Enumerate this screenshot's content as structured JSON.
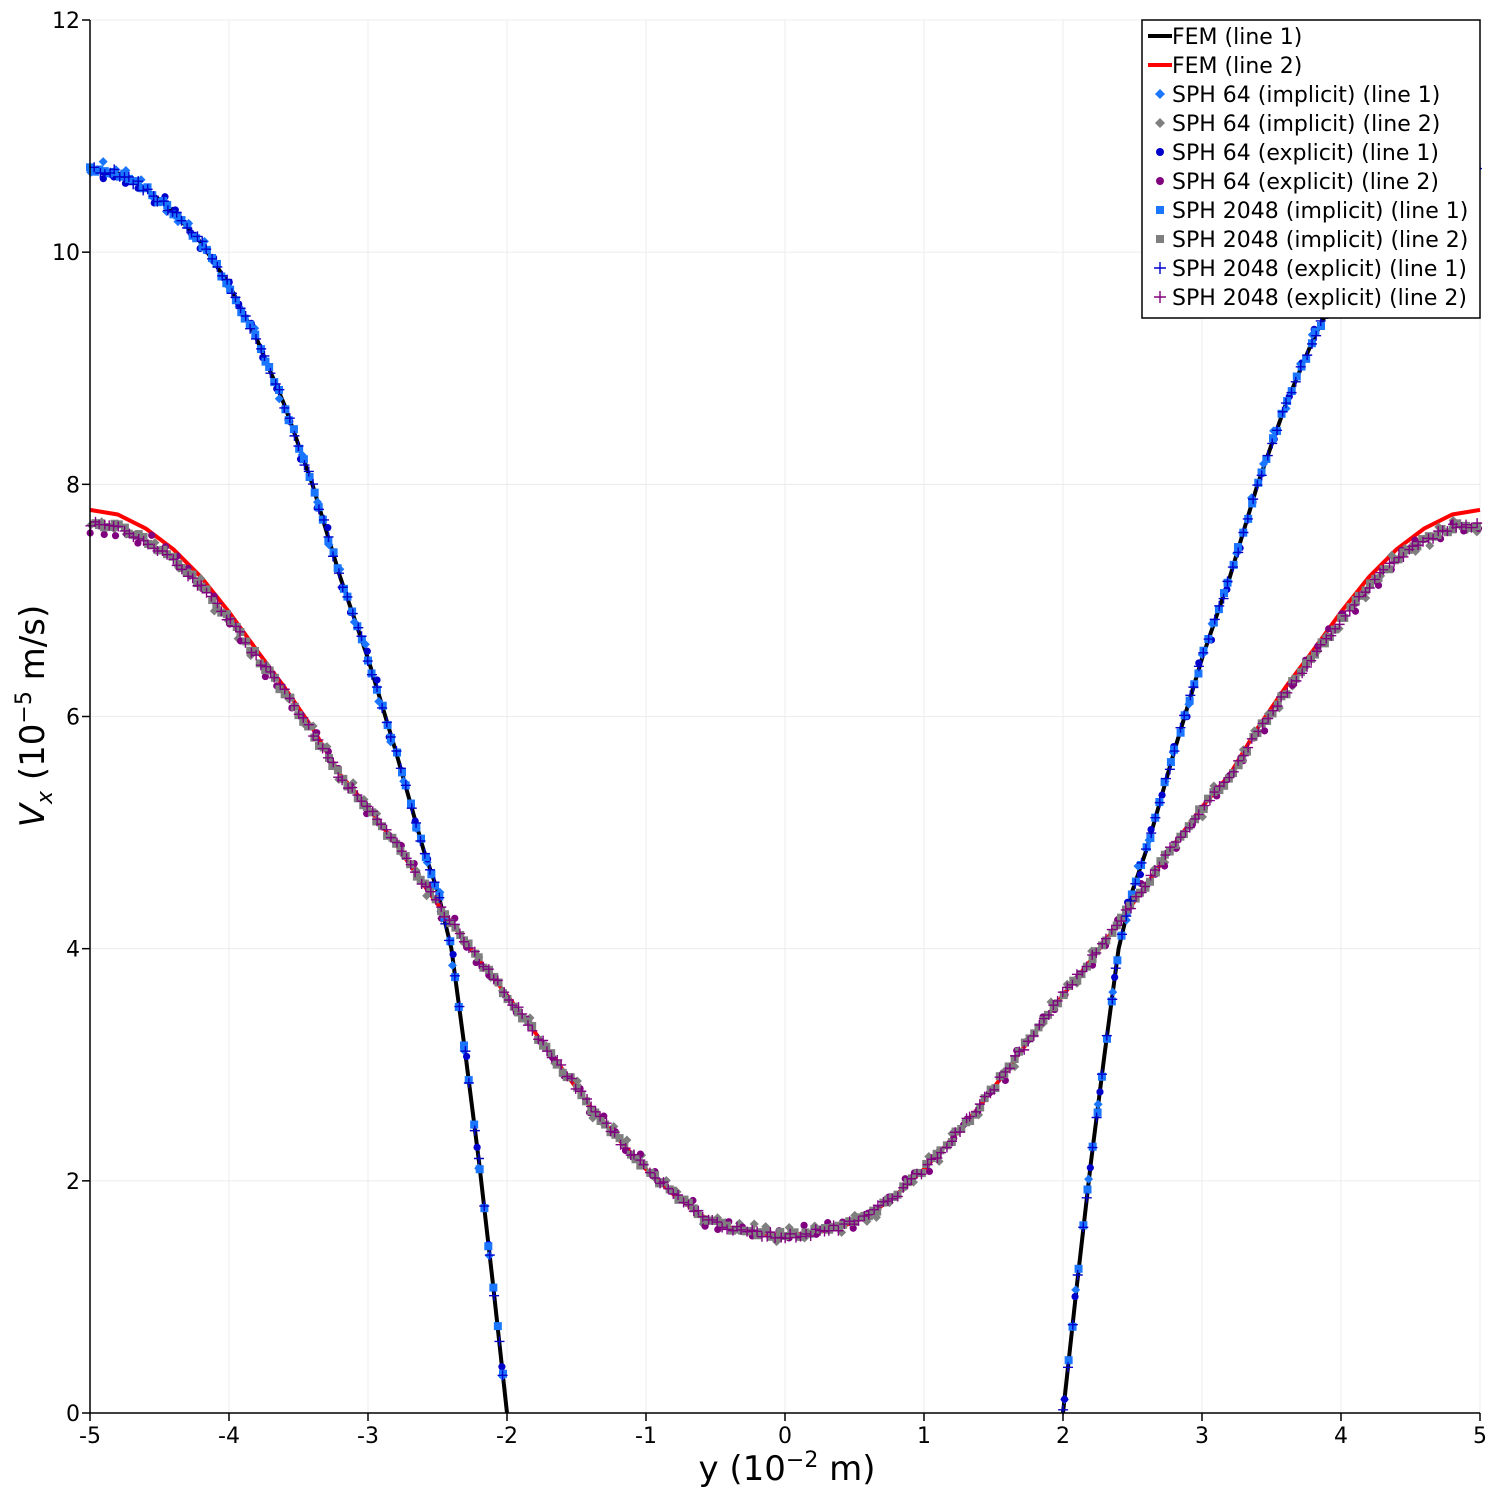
{
  "chart_data": {
    "type": "scatter",
    "title": "",
    "xlabel": "y (10",
    "xlabel_exp": "−2",
    "xlabel_tail": " m)",
    "ylabel": "V",
    "ylabel_sub": "x",
    "ylabel_mid": " (10",
    "ylabel_exp": "−5",
    "ylabel_tail": " m/s)",
    "xlim": [
      -5,
      5
    ],
    "ylim": [
      0,
      12
    ],
    "x_ticks": [
      -5,
      -4,
      -3,
      -2,
      -1,
      0,
      1,
      2,
      3,
      4,
      5
    ],
    "y_ticks": [
      0,
      2,
      4,
      6,
      8,
      10,
      12
    ],
    "grid": true,
    "legend_position": "top-right",
    "series": [
      {
        "name": "FEM (line 1)",
        "kind": "line",
        "color": "#000000",
        "model": "line1"
      },
      {
        "name": "FEM (line 2)",
        "kind": "line",
        "color": "#ff0000",
        "model": "line2"
      },
      {
        "name": "SPH 64 (implicit) (line 1)",
        "kind": "marker",
        "marker": "diamond",
        "color": "#1a75ff",
        "model": "line1"
      },
      {
        "name": "SPH 64 (implicit) (line 2)",
        "kind": "marker",
        "marker": "diamond",
        "color": "#7f7f7f",
        "model": "line2"
      },
      {
        "name": "SPH 64 (explicit) (line 1)",
        "kind": "marker",
        "marker": "circle",
        "color": "#0000cc",
        "model": "line1"
      },
      {
        "name": "SPH 64 (explicit) (line 2)",
        "kind": "marker",
        "marker": "circle",
        "color": "#800080",
        "model": "line2"
      },
      {
        "name": "SPH 2048 (implicit) (line 1)",
        "kind": "marker",
        "marker": "square",
        "color": "#1a75ff",
        "model": "line1"
      },
      {
        "name": "SPH 2048 (implicit) (line 2)",
        "kind": "marker",
        "marker": "square",
        "color": "#7f7f7f",
        "model": "line2"
      },
      {
        "name": "SPH 2048 (explicit) (line 1)",
        "kind": "marker",
        "marker": "plus",
        "color": "#0000cc",
        "model": "line1"
      },
      {
        "name": "SPH 2048 (explicit) (line 2)",
        "kind": "marker",
        "marker": "plus",
        "color": "#800080",
        "model": "line2"
      }
    ],
    "line1_points": [
      [
        -5.0,
        10.72
      ],
      [
        -4.8,
        10.68
      ],
      [
        -4.6,
        10.55
      ],
      [
        -4.4,
        10.35
      ],
      [
        -4.2,
        10.08
      ],
      [
        -4.0,
        9.72
      ],
      [
        -3.8,
        9.25
      ],
      [
        -3.6,
        8.68
      ],
      [
        -3.4,
        8.0
      ],
      [
        -3.2,
        7.2
      ],
      [
        -3.0,
        6.5
      ],
      [
        -2.8,
        5.7
      ],
      [
        -2.6,
        4.85
      ],
      [
        -2.5,
        4.5
      ],
      [
        -2.4,
        4.0
      ],
      [
        -2.3,
        3.1
      ],
      [
        -2.2,
        2.15
      ],
      [
        -2.1,
        1.1
      ],
      [
        -2.0,
        0.0
      ],
      [
        2.0,
        0.0
      ],
      [
        2.1,
        1.1
      ],
      [
        2.2,
        2.15
      ],
      [
        2.3,
        3.1
      ],
      [
        2.4,
        4.0
      ],
      [
        2.5,
        4.5
      ],
      [
        2.6,
        4.85
      ],
      [
        2.8,
        5.7
      ],
      [
        3.0,
        6.5
      ],
      [
        3.2,
        7.2
      ],
      [
        3.4,
        8.0
      ],
      [
        3.6,
        8.68
      ],
      [
        3.8,
        9.25
      ],
      [
        4.0,
        9.72
      ],
      [
        4.2,
        10.08
      ],
      [
        4.4,
        10.35
      ],
      [
        4.6,
        10.55
      ],
      [
        4.8,
        10.68
      ],
      [
        5.0,
        10.72
      ]
    ],
    "line2_points": [
      [
        -5.0,
        7.78
      ],
      [
        -4.8,
        7.74
      ],
      [
        -4.6,
        7.62
      ],
      [
        -4.4,
        7.44
      ],
      [
        -4.2,
        7.2
      ],
      [
        -4.0,
        6.9
      ],
      [
        -3.8,
        6.57
      ],
      [
        -3.6,
        6.25
      ],
      [
        -3.4,
        5.9
      ],
      [
        -3.2,
        5.5
      ],
      [
        -3.0,
        5.22
      ],
      [
        -2.8,
        4.9
      ],
      [
        -2.6,
        4.55
      ],
      [
        -2.4,
        4.22
      ],
      [
        -2.2,
        3.9
      ],
      [
        -2.0,
        3.6
      ],
      [
        -1.8,
        3.28
      ],
      [
        -1.6,
        2.96
      ],
      [
        -1.4,
        2.64
      ],
      [
        -1.2,
        2.36
      ],
      [
        -1.0,
        2.1
      ],
      [
        -0.8,
        1.88
      ],
      [
        -0.6,
        1.7
      ],
      [
        -0.4,
        1.6
      ],
      [
        -0.2,
        1.55
      ],
      [
        0.0,
        1.53
      ],
      [
        0.2,
        1.55
      ],
      [
        0.4,
        1.6
      ],
      [
        0.6,
        1.7
      ],
      [
        0.8,
        1.88
      ],
      [
        1.0,
        2.1
      ],
      [
        1.2,
        2.36
      ],
      [
        1.4,
        2.64
      ],
      [
        1.6,
        2.96
      ],
      [
        1.8,
        3.28
      ],
      [
        2.0,
        3.6
      ],
      [
        2.2,
        3.9
      ],
      [
        2.4,
        4.22
      ],
      [
        2.6,
        4.55
      ],
      [
        2.8,
        4.9
      ],
      [
        3.0,
        5.22
      ],
      [
        3.2,
        5.5
      ],
      [
        3.4,
        5.9
      ],
      [
        3.6,
        6.25
      ],
      [
        3.8,
        6.57
      ],
      [
        4.0,
        6.9
      ],
      [
        4.2,
        7.2
      ],
      [
        4.4,
        7.44
      ],
      [
        4.6,
        7.62
      ],
      [
        4.8,
        7.74
      ],
      [
        5.0,
        7.78
      ]
    ]
  }
}
